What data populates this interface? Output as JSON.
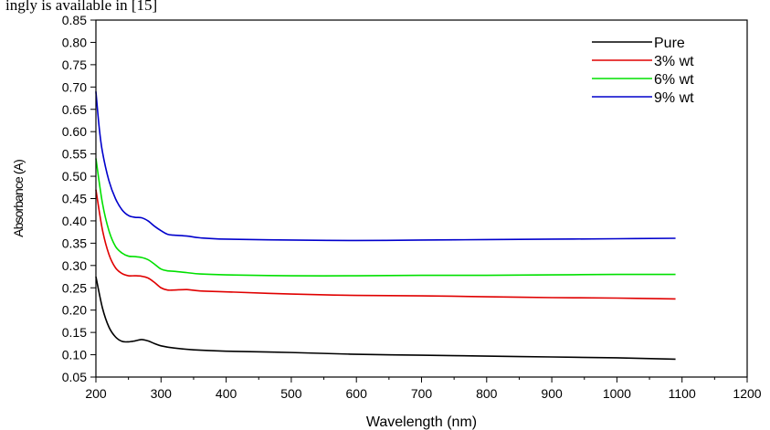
{
  "header_text": "ingly is available in [15]",
  "chart_data": {
    "type": "line",
    "title": "",
    "xlabel": "Wavelength (nm)",
    "ylabel": "Absorbance (A)",
    "xlim": [
      200,
      1200
    ],
    "ylim": [
      0.05,
      0.85
    ],
    "xticks": [
      200,
      300,
      400,
      500,
      600,
      700,
      800,
      900,
      1000,
      1100,
      1200
    ],
    "yticks": [
      0.05,
      0.1,
      0.15,
      0.2,
      0.25,
      0.3,
      0.35,
      0.4,
      0.45,
      0.5,
      0.55,
      0.6,
      0.65,
      0.7,
      0.75,
      0.8,
      0.85
    ],
    "grid": false,
    "legend_position": "top-right",
    "series": [
      {
        "name": "Pure",
        "color": "#000000",
        "x": [
          200,
          210,
          220,
          230,
          240,
          250,
          260,
          270,
          280,
          290,
          300,
          320,
          350,
          400,
          500,
          600,
          700,
          800,
          900,
          1000,
          1090
        ],
        "y": [
          0.275,
          0.205,
          0.162,
          0.14,
          0.13,
          0.129,
          0.131,
          0.134,
          0.131,
          0.125,
          0.12,
          0.115,
          0.111,
          0.108,
          0.105,
          0.101,
          0.099,
          0.097,
          0.095,
          0.093,
          0.09
        ]
      },
      {
        "name": "3% wt",
        "color": "#e00000",
        "x": [
          200,
          210,
          220,
          230,
          240,
          250,
          260,
          270,
          280,
          290,
          300,
          310,
          320,
          340,
          360,
          400,
          500,
          600,
          700,
          800,
          900,
          1000,
          1090
        ],
        "y": [
          0.47,
          0.38,
          0.325,
          0.295,
          0.282,
          0.277,
          0.277,
          0.276,
          0.272,
          0.262,
          0.25,
          0.245,
          0.245,
          0.246,
          0.243,
          0.241,
          0.236,
          0.233,
          0.232,
          0.23,
          0.228,
          0.227,
          0.225
        ]
      },
      {
        "name": "6% wt",
        "color": "#00e000",
        "x": [
          200,
          210,
          220,
          230,
          240,
          250,
          260,
          270,
          280,
          290,
          300,
          310,
          320,
          340,
          360,
          400,
          500,
          600,
          700,
          800,
          900,
          1000,
          1090
        ],
        "y": [
          0.54,
          0.44,
          0.378,
          0.343,
          0.328,
          0.321,
          0.32,
          0.318,
          0.313,
          0.303,
          0.292,
          0.288,
          0.287,
          0.284,
          0.281,
          0.279,
          0.277,
          0.277,
          0.278,
          0.278,
          0.279,
          0.28,
          0.28
        ]
      },
      {
        "name": "9% wt",
        "color": "#0000cc",
        "x": [
          200,
          205,
          210,
          220,
          230,
          240,
          250,
          260,
          270,
          280,
          290,
          300,
          310,
          320,
          340,
          360,
          400,
          500,
          600,
          700,
          800,
          900,
          1000,
          1090
        ],
        "y": [
          0.69,
          0.61,
          0.555,
          0.49,
          0.45,
          0.425,
          0.412,
          0.408,
          0.407,
          0.4,
          0.388,
          0.378,
          0.37,
          0.368,
          0.366,
          0.362,
          0.359,
          0.357,
          0.356,
          0.357,
          0.358,
          0.359,
          0.36,
          0.361
        ]
      }
    ]
  }
}
